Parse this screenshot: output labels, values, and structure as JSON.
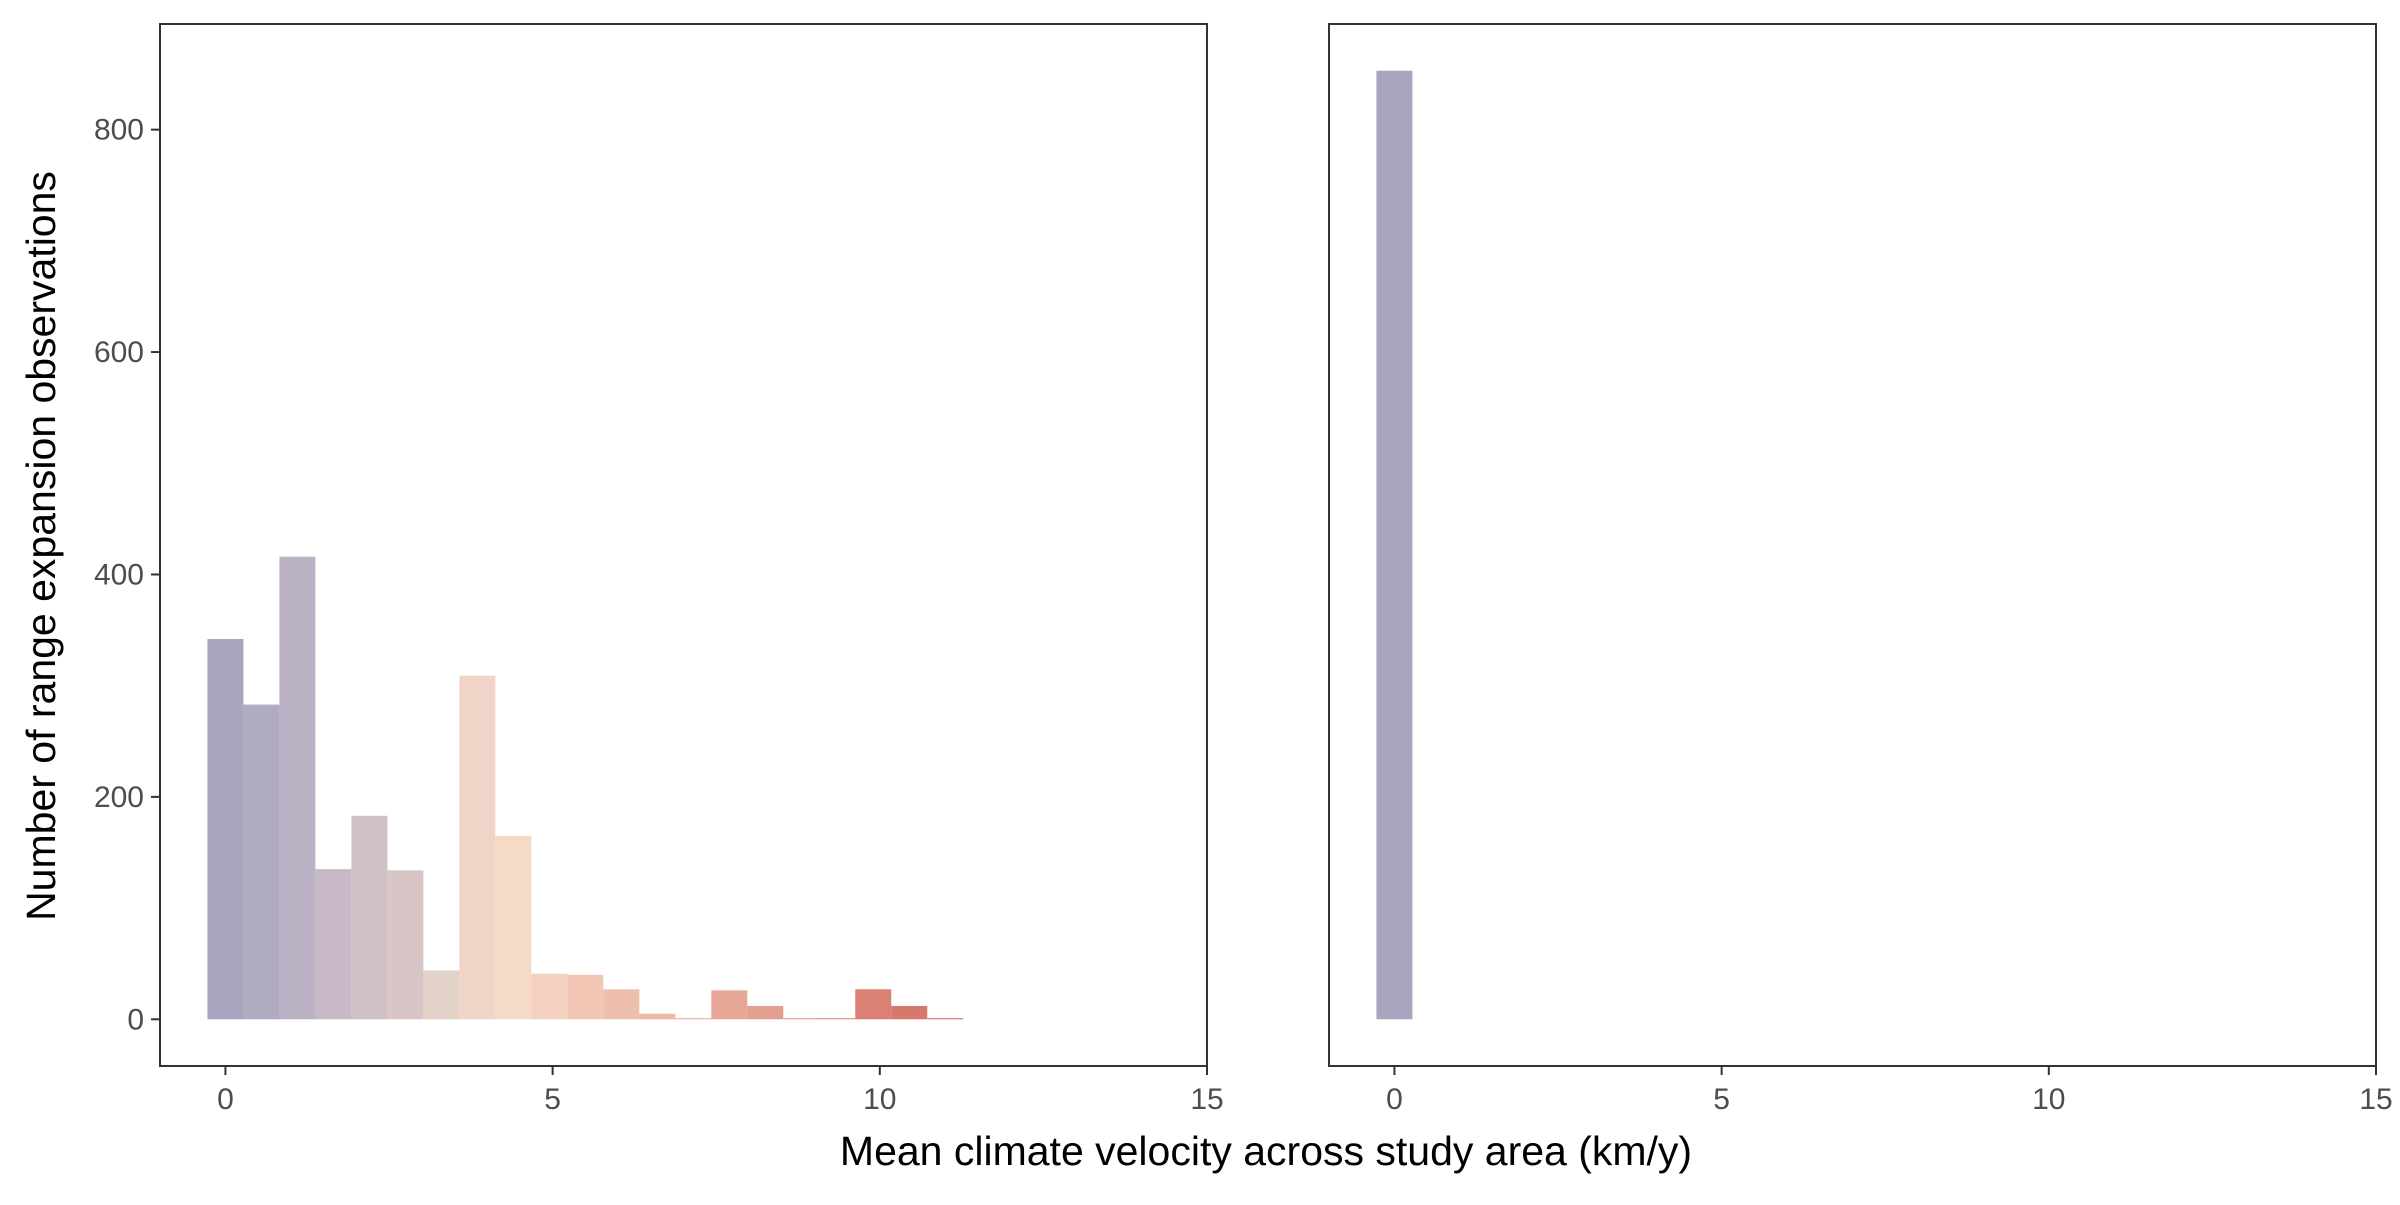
{
  "chart_data": {
    "type": "bar",
    "xlabel": "Mean climate velocity across study area (km/y)",
    "ylabel": "Number of range expansion observations",
    "xlim": [
      -1,
      15
    ],
    "ylim": [
      -42,
      895
    ],
    "x_ticks": [
      0,
      5,
      10,
      15
    ],
    "x_tick_labels": [
      "0",
      "5",
      "10",
      "15"
    ],
    "y_ticks": [
      0,
      200,
      400,
      600,
      800
    ],
    "y_tick_labels": [
      "0",
      "200",
      "400",
      "600",
      "800"
    ],
    "bin_width": 0.55,
    "grid": false,
    "legend": "none",
    "panels": [
      {
        "name": "",
        "bins": [
          {
            "x": 0.0,
            "count": 342,
            "color": "#a8a6be"
          },
          {
            "x": 0.55,
            "count": 283,
            "color": "#b1abc2"
          },
          {
            "x": 1.1,
            "count": 416,
            "color": "#bcb2c6"
          },
          {
            "x": 1.65,
            "count": 135,
            "color": "#c7b9c6"
          },
          {
            "x": 2.2,
            "count": 183,
            "color": "#cfbfc7"
          },
          {
            "x": 2.75,
            "count": 134,
            "color": "#d8c6c6"
          },
          {
            "x": 3.3,
            "count": 44,
            "color": "#e3d2c8"
          },
          {
            "x": 3.85,
            "count": 309,
            "color": "#efd4c7"
          },
          {
            "x": 4.4,
            "count": 165,
            "color": "#f5dac8"
          },
          {
            "x": 4.95,
            "count": 41,
            "color": "#f4d0be"
          },
          {
            "x": 5.5,
            "count": 40,
            "color": "#f1c6b5"
          },
          {
            "x": 6.05,
            "count": 27,
            "color": "#efbfae"
          },
          {
            "x": 6.6,
            "count": 5,
            "color": "#ecb7a6"
          },
          {
            "x": 7.15,
            "count": 1,
            "color": "#e8ae9d"
          },
          {
            "x": 7.7,
            "count": 26,
            "color": "#e6a797"
          },
          {
            "x": 8.25,
            "count": 12,
            "color": "#e39f8f"
          },
          {
            "x": 8.8,
            "count": 1,
            "color": "#e09686"
          },
          {
            "x": 9.35,
            "count": 1,
            "color": "#dd8d7e"
          },
          {
            "x": 9.9,
            "count": 27,
            "color": "#da8074"
          },
          {
            "x": 10.45,
            "count": 12,
            "color": "#d7786c"
          },
          {
            "x": 11.0,
            "count": 1,
            "color": "#d46e63"
          }
        ]
      },
      {
        "name": "",
        "bins": [
          {
            "x": 0.0,
            "count": 853,
            "color": "#a8a6be"
          }
        ]
      }
    ]
  }
}
